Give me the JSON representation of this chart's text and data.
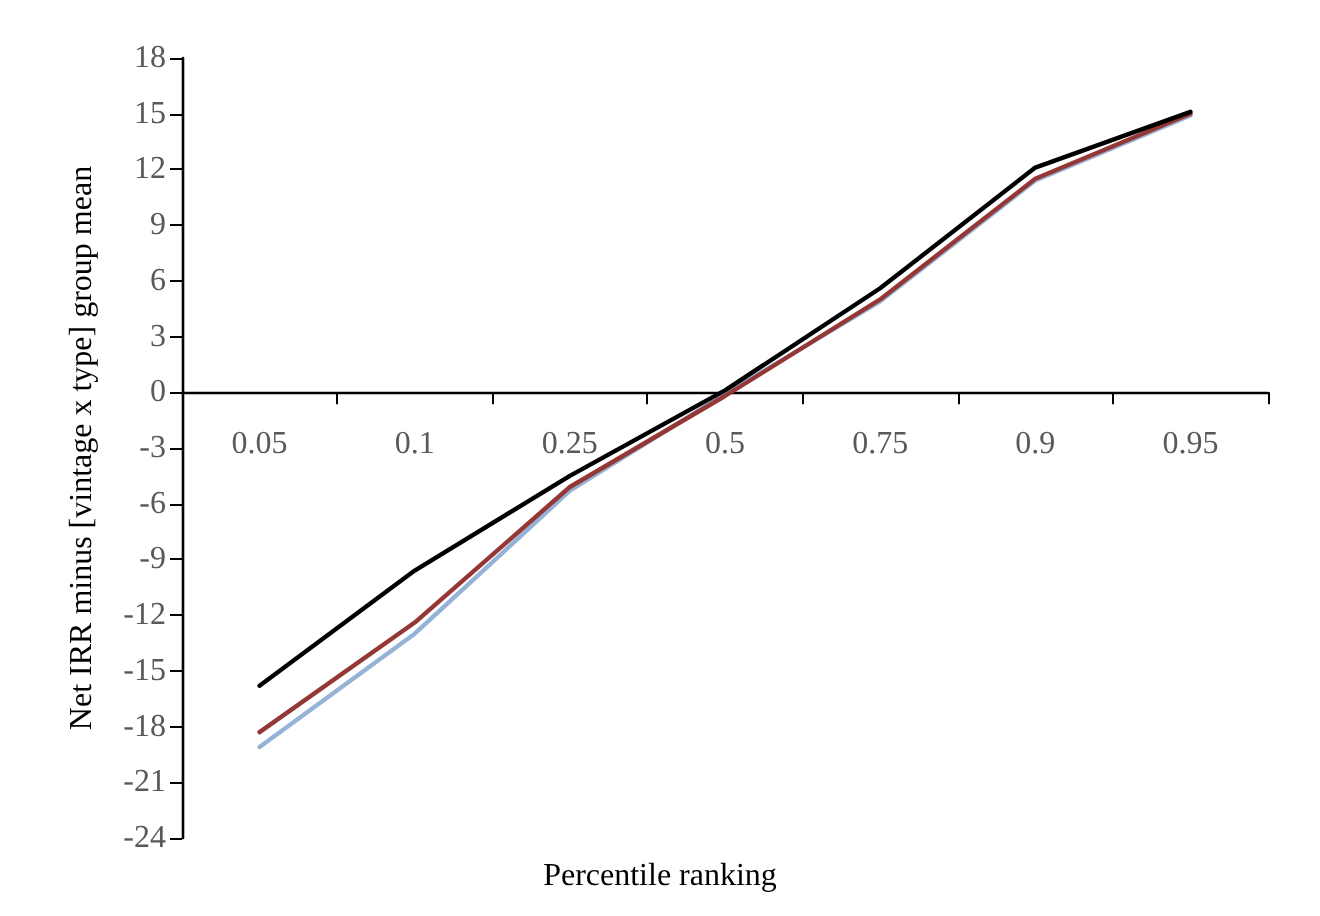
{
  "chart_data": {
    "type": "line",
    "xlabel": "Percentile ranking",
    "ylabel": "Net IRR minus [vintage x type] group mean",
    "categories": [
      "0.05",
      "0.1",
      "0.25",
      "0.5",
      "0.75",
      "0.9",
      "0.95"
    ],
    "series": [
      {
        "color": "#95b3d7",
        "values": [
          -19.1,
          -13.0,
          -5.3,
          -0.1,
          4.9,
          11.4,
          14.9
        ]
      },
      {
        "color": "#953735",
        "values": [
          -18.3,
          -12.4,
          -5.1,
          -0.2,
          5.0,
          11.5,
          15.0
        ]
      },
      {
        "color": "#000000",
        "values": [
          -15.8,
          -9.6,
          -4.5,
          0.1,
          5.6,
          12.1,
          15.1
        ]
      }
    ],
    "ylim": [
      -24,
      18
    ],
    "yticks": [
      -24,
      -21,
      -18,
      -15,
      -12,
      -9,
      -6,
      -3,
      0,
      3,
      6,
      9,
      12,
      15,
      18
    ],
    "grid": false,
    "marker": "none",
    "line_style": "solid"
  }
}
